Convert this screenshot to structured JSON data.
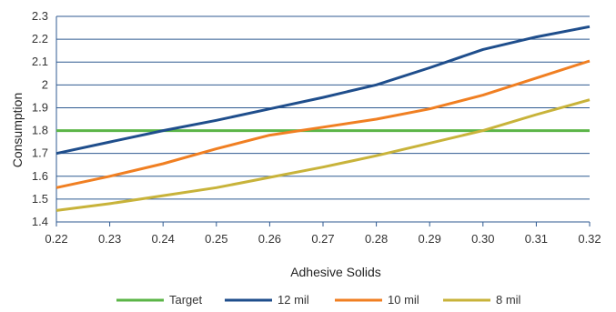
{
  "chart_data": {
    "type": "line",
    "title": "",
    "xlabel": "Adhesive Solids",
    "ylabel": "Consumption",
    "x": [
      0.22,
      0.23,
      0.24,
      0.25,
      0.26,
      0.27,
      0.28,
      0.29,
      0.3,
      0.31,
      0.32
    ],
    "x_tick_labels": [
      "0.22",
      "0.23",
      "0.24",
      "0.25",
      "0.26",
      "0.27",
      "0.28",
      "0.29",
      "0.30",
      "0.31",
      "0.32"
    ],
    "ylim": [
      1.4,
      2.3
    ],
    "y_ticks": [
      1.4,
      1.5,
      1.6,
      1.7,
      1.8,
      1.9,
      2.0,
      2.1,
      2.2,
      2.3
    ],
    "y_tick_labels": [
      "1.4",
      "1.5",
      "1.6",
      "1.7",
      "1.8",
      "1.9",
      "2",
      "2.1",
      "2.2",
      "2.3"
    ],
    "grid": "horizontal",
    "legend_position": "bottom",
    "series": [
      {
        "name": "Target",
        "color": "#5bb547",
        "values": [
          1.8,
          1.8,
          1.8,
          1.8,
          1.8,
          1.8,
          1.8,
          1.8,
          1.8,
          1.8,
          1.8
        ]
      },
      {
        "name": "12 mil",
        "color": "#1f4e8c",
        "values": [
          1.7,
          1.75,
          1.8,
          1.845,
          1.895,
          1.945,
          2.0,
          2.075,
          2.155,
          2.21,
          2.255
        ]
      },
      {
        "name": "10 mil",
        "color": "#f07f22",
        "values": [
          1.55,
          1.6,
          1.655,
          1.72,
          1.78,
          1.815,
          1.85,
          1.895,
          1.955,
          2.03,
          2.105
        ]
      },
      {
        "name": "8 mil",
        "color": "#c8b33a",
        "values": [
          1.45,
          1.48,
          1.515,
          1.55,
          1.595,
          1.64,
          1.69,
          1.745,
          1.8,
          1.87,
          1.935
        ]
      }
    ]
  }
}
